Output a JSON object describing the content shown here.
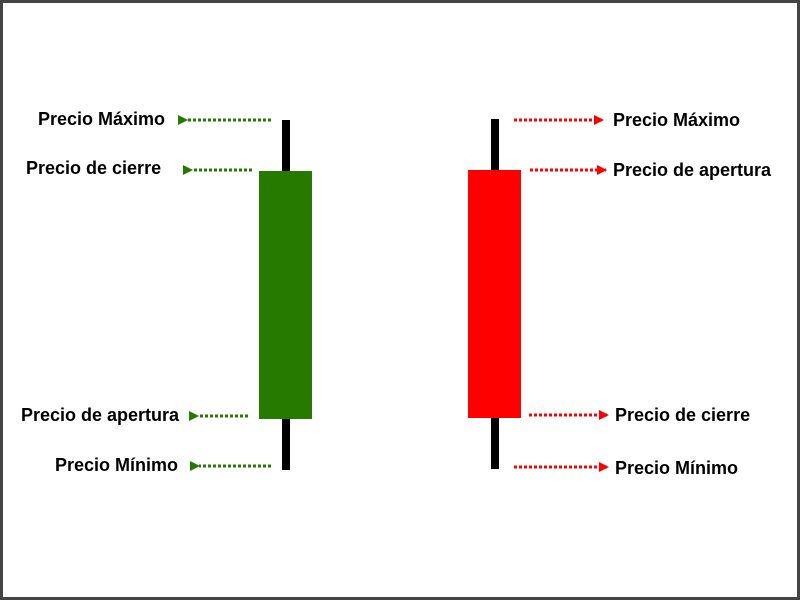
{
  "colors": {
    "bullish": "#267a00",
    "bearish": "#ff0000",
    "wick": "#000000",
    "frame": "#444444"
  },
  "bullish_candle": {
    "labels": {
      "high": "Precio Máximo",
      "close": "Precio de cierre",
      "open": "Precio de apertura",
      "low": "Precio Mínimo"
    }
  },
  "bearish_candle": {
    "labels": {
      "high": "Precio Máximo",
      "open": "Precio de apertura",
      "close": "Precio de cierre",
      "low": "Precio Mínimo"
    }
  }
}
